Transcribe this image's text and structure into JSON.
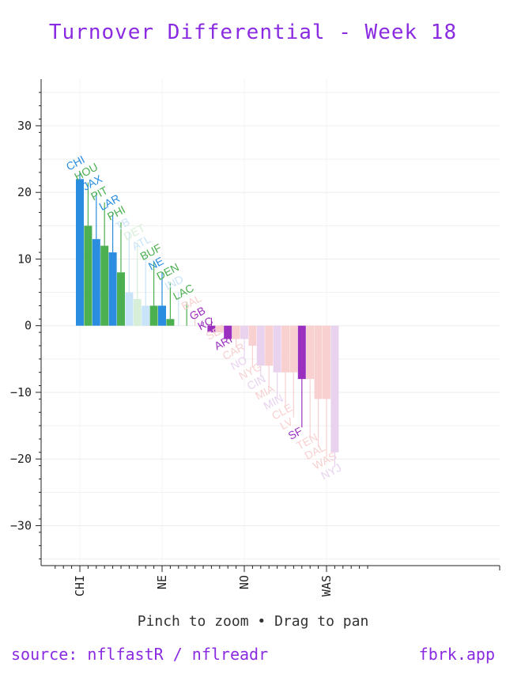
{
  "chart_data": {
    "type": "bar",
    "title": "Turnover Differential - Week 18",
    "xlabel": "",
    "ylabel": "",
    "ylim": [
      -36,
      37
    ],
    "y_ticks": [
      -30,
      -20,
      -10,
      0,
      10,
      20,
      30
    ],
    "x_tick_labels": [
      "CHI",
      "NE",
      "NO",
      "WAS"
    ],
    "grid": true,
    "teams": [
      {
        "team": "CHI",
        "value": 22,
        "color": "#2a8de0"
      },
      {
        "team": "HOU",
        "value": 15,
        "color": "#4caf50"
      },
      {
        "team": "JAX",
        "value": 13,
        "color": "#2a8de0"
      },
      {
        "team": "PIT",
        "value": 12,
        "color": "#4caf50"
      },
      {
        "team": "LAR",
        "value": 11,
        "color": "#2a8de0"
      },
      {
        "team": "PHI",
        "value": 8,
        "color": "#4caf50"
      },
      {
        "team": "TB",
        "value": 5,
        "color": "#c9e4f8"
      },
      {
        "team": "DET",
        "value": 4,
        "color": "#d7eed8"
      },
      {
        "team": "ATL",
        "value": 3,
        "color": "#c9e4f8"
      },
      {
        "team": "BUF",
        "value": 3,
        "color": "#4caf50"
      },
      {
        "team": "NE",
        "value": 3,
        "color": "#2a8de0"
      },
      {
        "team": "DEN",
        "value": 1,
        "color": "#4caf50"
      },
      {
        "team": "IND",
        "value": 0,
        "color": "#c9e4f8"
      },
      {
        "team": "LAC",
        "value": 0,
        "color": "#4caf50"
      },
      {
        "team": "BAL",
        "value": 0,
        "color": "#f8d0d0"
      },
      {
        "team": "GB",
        "value": 0,
        "color": "#9b30c0"
      },
      {
        "team": "KC",
        "value": -1,
        "color": "#9b30c0"
      },
      {
        "team": "SEA",
        "value": -1,
        "color": "#f8d0d0"
      },
      {
        "team": "ARI",
        "value": -2,
        "color": "#9b30c0"
      },
      {
        "team": "CAR",
        "value": -2,
        "color": "#f8d0d0"
      },
      {
        "team": "NO",
        "value": -2,
        "color": "#e8d2ee"
      },
      {
        "team": "NYG",
        "value": -3,
        "color": "#f8d0d0"
      },
      {
        "team": "CIN",
        "value": -6,
        "color": "#e8d2ee"
      },
      {
        "team": "MIA",
        "value": -6,
        "color": "#f8d0d0"
      },
      {
        "team": "MIN",
        "value": -7,
        "color": "#e8d2ee"
      },
      {
        "team": "CLE",
        "value": -7,
        "color": "#f8d0d0"
      },
      {
        "team": "LV",
        "value": -7,
        "color": "#f8d0d0"
      },
      {
        "team": "SF",
        "value": -8,
        "color": "#9b30c0"
      },
      {
        "team": "TEN",
        "value": -8,
        "color": "#f8d0d0"
      },
      {
        "team": "DAL",
        "value": -11,
        "color": "#f8d0d0"
      },
      {
        "team": "WAS",
        "value": -11,
        "color": "#f8d0d0"
      },
      {
        "team": "NYJ",
        "value": -19,
        "color": "#e8d2ee"
      }
    ]
  },
  "footer": {
    "hint": "Pinch to zoom • Drag to pan",
    "source": "source: nflfastR / nflreadr",
    "site": "fbrk.app"
  }
}
